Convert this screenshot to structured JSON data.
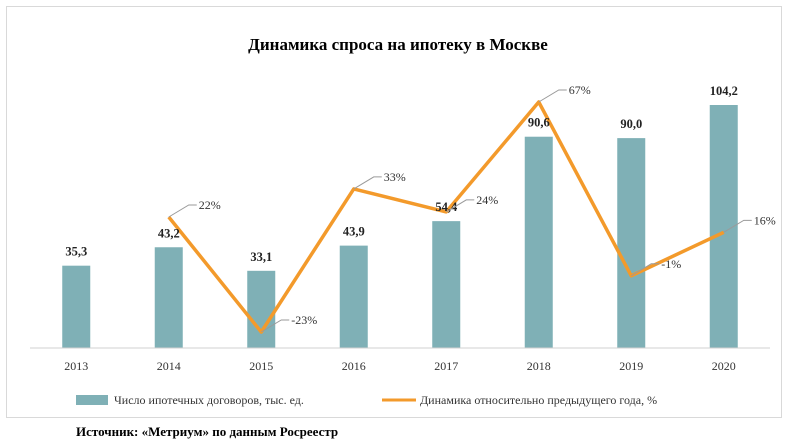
{
  "chart_data": {
    "type": "bar+line",
    "title": "Динамика спроса на ипотеку в Москве",
    "categories": [
      "2013",
      "2014",
      "2015",
      "2016",
      "2017",
      "2018",
      "2019",
      "2020"
    ],
    "series": [
      {
        "name": "Число ипотечных договоров, тыс. ед.",
        "type": "bar",
        "color": "#7fb0b6",
        "values": [
          35.3,
          43.2,
          33.1,
          43.9,
          54.4,
          90.6,
          90.0,
          104.2
        ],
        "labels": [
          "35,3",
          "43,2",
          "33,1",
          "43,9",
          "54,4",
          "90,6",
          "90,0",
          "104,2"
        ]
      },
      {
        "name": "Динамика относительно предыдущего года, %",
        "type": "line",
        "color": "#f39a2b",
        "values": [
          null,
          22,
          -23,
          33,
          24,
          67,
          -1,
          16
        ],
        "labels": [
          "",
          "22%",
          "-23%",
          "33%",
          "24%",
          "67%",
          "-1%",
          "16%"
        ]
      }
    ],
    "legend_position": "bottom",
    "grid": false
  },
  "source": "Источник: «Метриум» по данным Росреестр"
}
